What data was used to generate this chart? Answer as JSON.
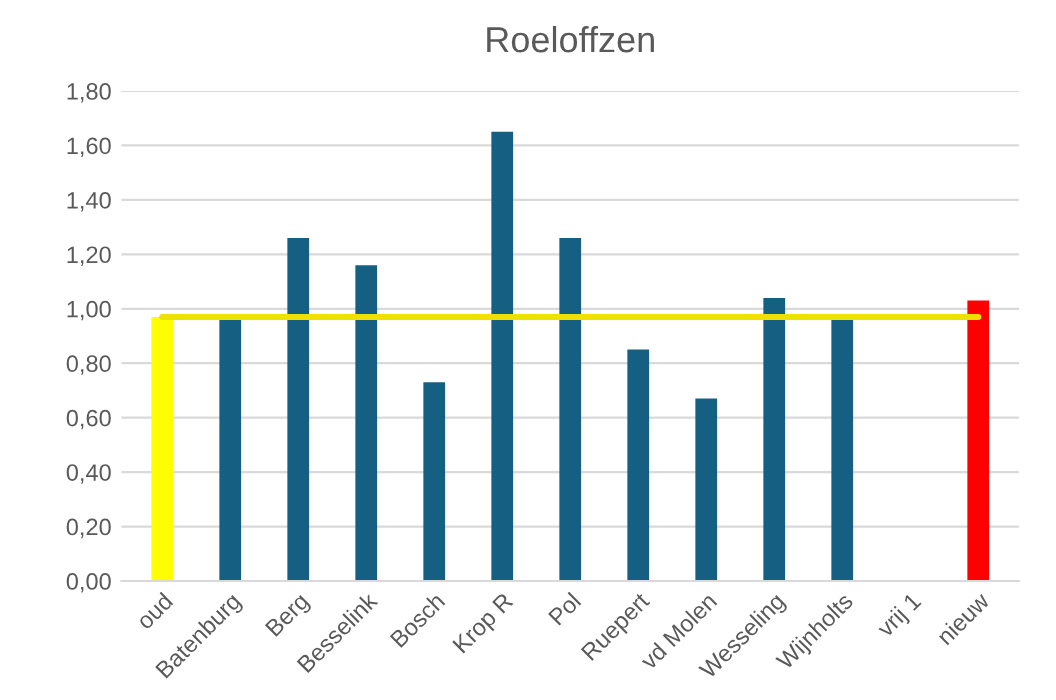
{
  "chart_data": {
    "type": "bar",
    "title": "Roeloffzen",
    "categories": [
      "oud",
      "Batenburg",
      "Berg",
      "Besselink",
      "Bosch",
      "Krop R",
      "Pol",
      "Ruepert",
      "vd Molen",
      "Wesseling",
      "Wijnholts",
      "vrij 1",
      "nieuw"
    ],
    "series": [
      {
        "values": [
          0.97,
          0.96,
          1.26,
          1.16,
          0.73,
          1.65,
          1.26,
          0.85,
          0.67,
          1.04,
          0.96,
          null,
          1.03
        ],
        "colors": [
          "#ffff00",
          "#156082",
          "#156082",
          "#156082",
          "#156082",
          "#156082",
          "#156082",
          "#156082",
          "#156082",
          "#156082",
          "#156082",
          "#156082",
          "#ff0000"
        ]
      },
      {
        "type": "line",
        "color": "#f0e000",
        "values": [
          0.97,
          0.97,
          0.97,
          0.97,
          0.97,
          0.97,
          0.97,
          0.97,
          0.97,
          0.97,
          0.97,
          0.97,
          0.97
        ]
      }
    ],
    "ylim": [
      0,
      1.8
    ],
    "yticks": [
      {
        "value": 0,
        "label": "0,00"
      },
      {
        "value": 0.2,
        "label": "0,20"
      },
      {
        "value": 0.4,
        "label": "0,40"
      },
      {
        "value": 0.6,
        "label": "0,60"
      },
      {
        "value": 0.8,
        "label": "0,80"
      },
      {
        "value": 1.0,
        "label": "1,00"
      },
      {
        "value": 1.2,
        "label": "1,20"
      },
      {
        "value": 1.4,
        "label": "1,40"
      },
      {
        "value": 1.6,
        "label": "1,60"
      },
      {
        "value": 1.8,
        "label": "1,80"
      }
    ],
    "grid": "y",
    "legend": false
  }
}
